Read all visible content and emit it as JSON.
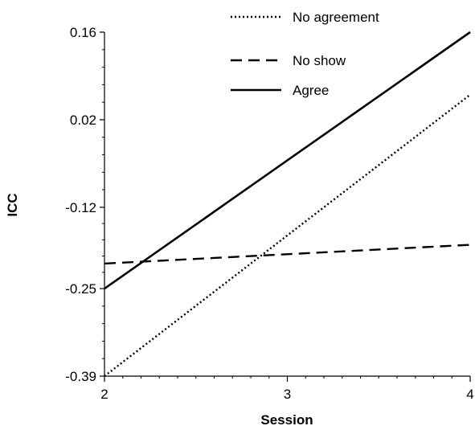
{
  "chart_data": {
    "type": "line",
    "title": "",
    "xlabel": "Session",
    "ylabel": "ICC",
    "xlim": [
      2,
      4
    ],
    "ylim": [
      -0.39,
      0.16
    ],
    "x_ticks": [
      2,
      3,
      4
    ],
    "x_tick_labels": [
      "2",
      "3",
      "4"
    ],
    "y_ticks": [
      -0.39,
      -0.25,
      -0.12,
      0.02,
      0.16
    ],
    "y_tick_labels": [
      "-0.39",
      "-0.25",
      "-0.12",
      "0.02",
      "0.16"
    ],
    "grid": false,
    "legend_position": "top-right",
    "series": [
      {
        "name": "No agreement",
        "style": "dotted",
        "color": "#000000",
        "x": [
          2,
          4
        ],
        "y": [
          -0.39,
          0.06
        ]
      },
      {
        "name": "No show",
        "style": "dashed",
        "color": "#000000",
        "x": [
          2,
          4
        ],
        "y": [
          -0.21,
          -0.18
        ]
      },
      {
        "name": "Agree",
        "style": "solid",
        "color": "#000000",
        "x": [
          2,
          4
        ],
        "y": [
          -0.25,
          0.16
        ]
      }
    ]
  }
}
